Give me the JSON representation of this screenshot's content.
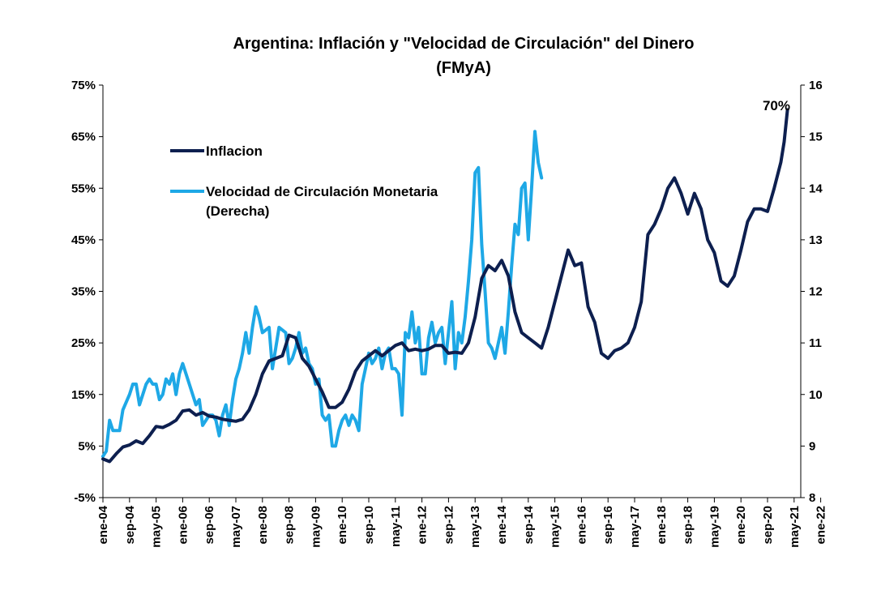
{
  "chart_data": {
    "type": "line",
    "title": "Argentina: Inflación y \"Velocidad de Circulación\" del Dinero",
    "subtitle": "(FMyA)",
    "x_tick_labels": [
      "ene-04",
      "sep-04",
      "may-05",
      "ene-06",
      "sep-06",
      "may-07",
      "ene-08",
      "sep-08",
      "may-09",
      "ene-10",
      "sep-10",
      "may-11",
      "ene-12",
      "sep-12",
      "may-13",
      "ene-14",
      "sep-14",
      "may-15",
      "ene-16",
      "sep-16",
      "may-17",
      "ene-18",
      "sep-18",
      "may-19",
      "ene-20",
      "sep-20",
      "may-21",
      "ene-22"
    ],
    "y_left": {
      "ticks": [
        "75%",
        "65%",
        "55%",
        "45%",
        "35%",
        "25%",
        "15%",
        "5%",
        "-5%"
      ],
      "min": -5,
      "max": 75
    },
    "y_right": {
      "ticks": [
        "16",
        "15",
        "14",
        "13",
        "12",
        "11",
        "10",
        "9",
        "8"
      ],
      "min": 8,
      "max": 16
    },
    "legend": [
      "Inflacion",
      "Velocidad de Circulación Monetaria",
      "(Derecha)"
    ],
    "annotation": "70%",
    "colors": {
      "inflation": "#0d1f4f",
      "velocity": "#1ea8e6"
    },
    "series": [
      {
        "name": "Inflacion",
        "axis": "left",
        "points": [
          [
            0,
            2.5
          ],
          [
            2,
            2.0
          ],
          [
            4,
            3.5
          ],
          [
            6,
            4.8
          ],
          [
            8,
            5.2
          ],
          [
            10,
            6.0
          ],
          [
            12,
            5.5
          ],
          [
            14,
            7.0
          ],
          [
            16,
            8.8
          ],
          [
            18,
            8.6
          ],
          [
            20,
            9.2
          ],
          [
            22,
            10.0
          ],
          [
            24,
            11.8
          ],
          [
            26,
            12.0
          ],
          [
            28,
            11.0
          ],
          [
            30,
            11.5
          ],
          [
            32,
            10.8
          ],
          [
            34,
            10.6
          ],
          [
            36,
            10.2
          ],
          [
            38,
            10.0
          ],
          [
            40,
            9.8
          ],
          [
            42,
            10.2
          ],
          [
            44,
            12.0
          ],
          [
            46,
            15.0
          ],
          [
            48,
            19.0
          ],
          [
            50,
            21.5
          ],
          [
            52,
            22.0
          ],
          [
            54,
            22.5
          ],
          [
            56,
            26.5
          ],
          [
            58,
            26.0
          ],
          [
            60,
            22.0
          ],
          [
            62,
            20.5
          ],
          [
            64,
            18.0
          ],
          [
            66,
            15.5
          ],
          [
            68,
            12.5
          ],
          [
            70,
            12.5
          ],
          [
            72,
            13.5
          ],
          [
            74,
            16.0
          ],
          [
            76,
            19.5
          ],
          [
            78,
            21.5
          ],
          [
            80,
            22.5
          ],
          [
            82,
            23.5
          ],
          [
            84,
            22.5
          ],
          [
            86,
            23.5
          ],
          [
            88,
            24.5
          ],
          [
            90,
            25.0
          ],
          [
            92,
            23.5
          ],
          [
            94,
            23.8
          ],
          [
            96,
            23.5
          ],
          [
            98,
            23.8
          ],
          [
            100,
            24.5
          ],
          [
            102,
            24.5
          ],
          [
            104,
            23.0
          ],
          [
            106,
            23.2
          ],
          [
            108,
            23.0
          ],
          [
            110,
            25.0
          ],
          [
            112,
            30.0
          ],
          [
            114,
            37.5
          ],
          [
            116,
            40.0
          ],
          [
            118,
            39.0
          ],
          [
            120,
            41.0
          ],
          [
            122,
            38.0
          ],
          [
            124,
            31.0
          ],
          [
            126,
            27.0
          ],
          [
            128,
            26.0
          ],
          [
            130,
            25.0
          ],
          [
            132,
            24.0
          ],
          [
            134,
            28.0
          ],
          [
            136,
            33.0
          ],
          [
            138,
            38.0
          ],
          [
            140,
            43.0
          ],
          [
            142,
            40.0
          ],
          [
            144,
            40.5
          ],
          [
            146,
            32.0
          ],
          [
            148,
            29.0
          ],
          [
            150,
            23.0
          ],
          [
            152,
            22.0
          ],
          [
            154,
            23.5
          ],
          [
            156,
            24.0
          ],
          [
            158,
            25.0
          ],
          [
            160,
            28.0
          ],
          [
            162,
            33.0
          ],
          [
            164,
            46.0
          ],
          [
            166,
            48.0
          ],
          [
            168,
            51.0
          ],
          [
            170,
            55.0
          ],
          [
            172,
            57.0
          ],
          [
            174,
            54.0
          ],
          [
            176,
            50.0
          ],
          [
            178,
            54.0
          ],
          [
            180,
            51.0
          ],
          [
            182,
            45.0
          ],
          [
            184,
            42.5
          ],
          [
            186,
            37.0
          ],
          [
            188,
            36.0
          ],
          [
            190,
            38.0
          ],
          [
            192,
            43.0
          ],
          [
            194,
            48.5
          ],
          [
            196,
            51.0
          ],
          [
            198,
            51.0
          ],
          [
            200,
            50.5
          ],
          [
            202,
            55.0
          ],
          [
            204,
            60.0
          ],
          [
            205,
            64.0
          ],
          [
            206,
            70.2
          ]
        ]
      },
      {
        "name": "Velocidad de Circulación Monetaria",
        "axis": "right",
        "points": [
          [
            0,
            8.8
          ],
          [
            1,
            8.9
          ],
          [
            2,
            9.5
          ],
          [
            3,
            9.3
          ],
          [
            5,
            9.3
          ],
          [
            6,
            9.7
          ],
          [
            8,
            10.0
          ],
          [
            9,
            10.2
          ],
          [
            10,
            10.2
          ],
          [
            11,
            9.8
          ],
          [
            12,
            10.0
          ],
          [
            13,
            10.2
          ],
          [
            14,
            10.3
          ],
          [
            15,
            10.2
          ],
          [
            16,
            10.2
          ],
          [
            17,
            9.9
          ],
          [
            18,
            10.0
          ],
          [
            19,
            10.3
          ],
          [
            20,
            10.2
          ],
          [
            21,
            10.4
          ],
          [
            22,
            10.0
          ],
          [
            23,
            10.4
          ],
          [
            24,
            10.6
          ],
          [
            25,
            10.4
          ],
          [
            26,
            10.2
          ],
          [
            28,
            9.8
          ],
          [
            29,
            9.9
          ],
          [
            30,
            9.4
          ],
          [
            31,
            9.5
          ],
          [
            32,
            9.6
          ],
          [
            33,
            9.6
          ],
          [
            34,
            9.5
          ],
          [
            35,
            9.2
          ],
          [
            36,
            9.6
          ],
          [
            37,
            9.8
          ],
          [
            38,
            9.4
          ],
          [
            39,
            9.9
          ],
          [
            40,
            10.3
          ],
          [
            41,
            10.5
          ],
          [
            42,
            10.8
          ],
          [
            43,
            11.2
          ],
          [
            44,
            10.8
          ],
          [
            45,
            11.3
          ],
          [
            46,
            11.7
          ],
          [
            47,
            11.5
          ],
          [
            48,
            11.2
          ],
          [
            50,
            11.3
          ],
          [
            51,
            10.5
          ],
          [
            52,
            10.9
          ],
          [
            53,
            11.3
          ],
          [
            55,
            11.2
          ],
          [
            56,
            10.6
          ],
          [
            57,
            10.7
          ],
          [
            58,
            10.9
          ],
          [
            59,
            11.2
          ],
          [
            60,
            10.8
          ],
          [
            61,
            10.9
          ],
          [
            62,
            10.6
          ],
          [
            63,
            10.5
          ],
          [
            64,
            10.2
          ],
          [
            65,
            10.3
          ],
          [
            66,
            9.6
          ],
          [
            67,
            9.5
          ],
          [
            68,
            9.6
          ],
          [
            69,
            9.0
          ],
          [
            70,
            9.0
          ],
          [
            71,
            9.3
          ],
          [
            72,
            9.5
          ],
          [
            73,
            9.6
          ],
          [
            74,
            9.4
          ],
          [
            75,
            9.6
          ],
          [
            76,
            9.5
          ],
          [
            77,
            9.3
          ],
          [
            78,
            10.2
          ],
          [
            79,
            10.5
          ],
          [
            80,
            10.8
          ],
          [
            81,
            10.6
          ],
          [
            82,
            10.7
          ],
          [
            83,
            10.9
          ],
          [
            84,
            10.5
          ],
          [
            85,
            10.8
          ],
          [
            86,
            10.9
          ],
          [
            87,
            10.5
          ],
          [
            88,
            10.5
          ],
          [
            89,
            10.4
          ],
          [
            90,
            9.6
          ],
          [
            91,
            11.2
          ],
          [
            92,
            11.1
          ],
          [
            93,
            11.6
          ],
          [
            94,
            11.0
          ],
          [
            95,
            11.3
          ],
          [
            96,
            10.4
          ],
          [
            97,
            10.4
          ],
          [
            98,
            11.1
          ],
          [
            99,
            11.4
          ],
          [
            100,
            11.0
          ],
          [
            101,
            11.2
          ],
          [
            102,
            11.3
          ],
          [
            103,
            10.6
          ],
          [
            104,
            11.2
          ],
          [
            105,
            11.8
          ],
          [
            106,
            10.5
          ],
          [
            107,
            11.2
          ],
          [
            108,
            11.0
          ],
          [
            109,
            11.5
          ],
          [
            110,
            12.2
          ],
          [
            111,
            13.0
          ],
          [
            112,
            14.3
          ],
          [
            113,
            14.4
          ],
          [
            114,
            12.9
          ],
          [
            115,
            12.0
          ],
          [
            116,
            11.0
          ],
          [
            117,
            10.9
          ],
          [
            118,
            10.7
          ],
          [
            119,
            11.0
          ],
          [
            120,
            11.3
          ],
          [
            121,
            10.8
          ],
          [
            122,
            11.6
          ],
          [
            123,
            12.5
          ],
          [
            124,
            13.3
          ],
          [
            125,
            13.1
          ],
          [
            126,
            14.0
          ],
          [
            127,
            14.1
          ],
          [
            128,
            13.0
          ],
          [
            129,
            14.0
          ],
          [
            130,
            15.1
          ],
          [
            131,
            14.5
          ],
          [
            132,
            14.2
          ]
        ]
      }
    ]
  }
}
